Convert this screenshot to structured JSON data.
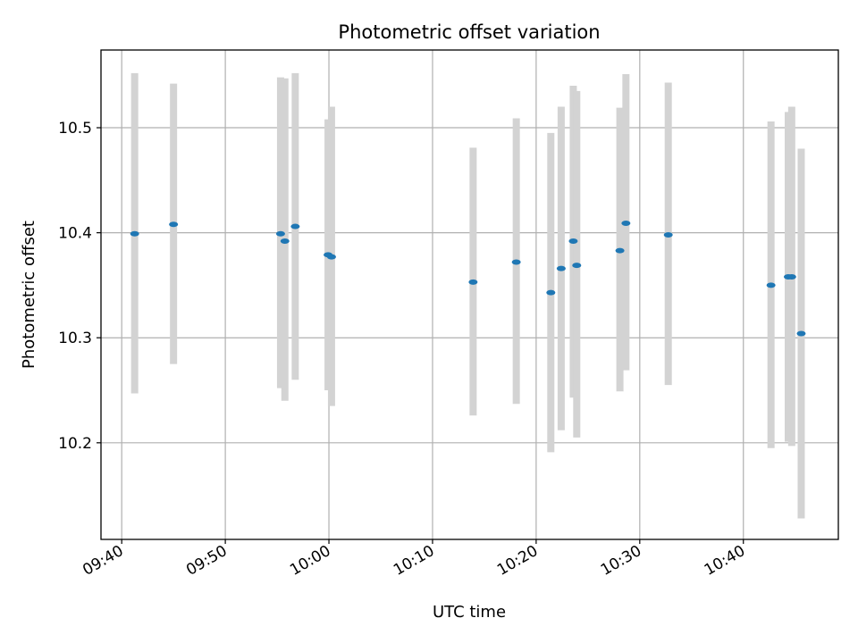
{
  "chart_data": {
    "type": "scatter",
    "title": "Photometric offset variation",
    "xlabel": "UTC time",
    "ylabel": "Photometric offset",
    "xlim": [
      "09:38:00",
      "10:49:10"
    ],
    "ylim": [
      10.108,
      10.574
    ],
    "grid": true,
    "x_ticks": [
      "09:40",
      "09:50",
      "10:00",
      "10:10",
      "10:20",
      "10:30",
      "10:40"
    ],
    "y_ticks": [
      "10.2",
      "10.3",
      "10.4",
      "10.5"
    ],
    "points": [
      {
        "t": "09:41:15",
        "y": 10.399,
        "err_low": 10.247,
        "err_high": 10.552
      },
      {
        "t": "09:45:00",
        "y": 10.408,
        "err_low": 10.275,
        "err_high": 10.542
      },
      {
        "t": "09:55:20",
        "y": 10.399,
        "err_low": 10.252,
        "err_high": 10.548
      },
      {
        "t": "09:55:45",
        "y": 10.392,
        "err_low": 10.24,
        "err_high": 10.547
      },
      {
        "t": "09:56:45",
        "y": 10.406,
        "err_low": 10.26,
        "err_high": 10.552
      },
      {
        "t": "09:59:55",
        "y": 10.379,
        "err_low": 10.25,
        "err_high": 10.508
      },
      {
        "t": "10:00:15",
        "y": 10.377,
        "err_low": 10.235,
        "err_high": 10.52
      },
      {
        "t": "10:13:55",
        "y": 10.353,
        "err_low": 10.226,
        "err_high": 10.481
      },
      {
        "t": "10:18:05",
        "y": 10.372,
        "err_low": 10.237,
        "err_high": 10.509
      },
      {
        "t": "10:21:25",
        "y": 10.343,
        "err_low": 10.191,
        "err_high": 10.495
      },
      {
        "t": "10:22:25",
        "y": 10.366,
        "err_low": 10.212,
        "err_high": 10.52
      },
      {
        "t": "10:23:35",
        "y": 10.392,
        "err_low": 10.243,
        "err_high": 10.54
      },
      {
        "t": "10:23:55",
        "y": 10.369,
        "err_low": 10.205,
        "err_high": 10.535
      },
      {
        "t": "10:28:05",
        "y": 10.383,
        "err_low": 10.249,
        "err_high": 10.519
      },
      {
        "t": "10:28:40",
        "y": 10.409,
        "err_low": 10.269,
        "err_high": 10.551
      },
      {
        "t": "10:32:45",
        "y": 10.398,
        "err_low": 10.255,
        "err_high": 10.543
      },
      {
        "t": "10:42:40",
        "y": 10.35,
        "err_low": 10.195,
        "err_high": 10.506
      },
      {
        "t": "10:44:20",
        "y": 10.358,
        "err_low": 10.201,
        "err_high": 10.515
      },
      {
        "t": "10:44:40",
        "y": 10.358,
        "err_low": 10.197,
        "err_high": 10.52
      },
      {
        "t": "10:45:35",
        "y": 10.304,
        "err_low": 10.128,
        "err_high": 10.48
      }
    ],
    "colors": {
      "marker": "#1f77b4",
      "errorbar": "#d3d3d3",
      "grid": "#b0b0b0",
      "axes": "#000000"
    }
  }
}
